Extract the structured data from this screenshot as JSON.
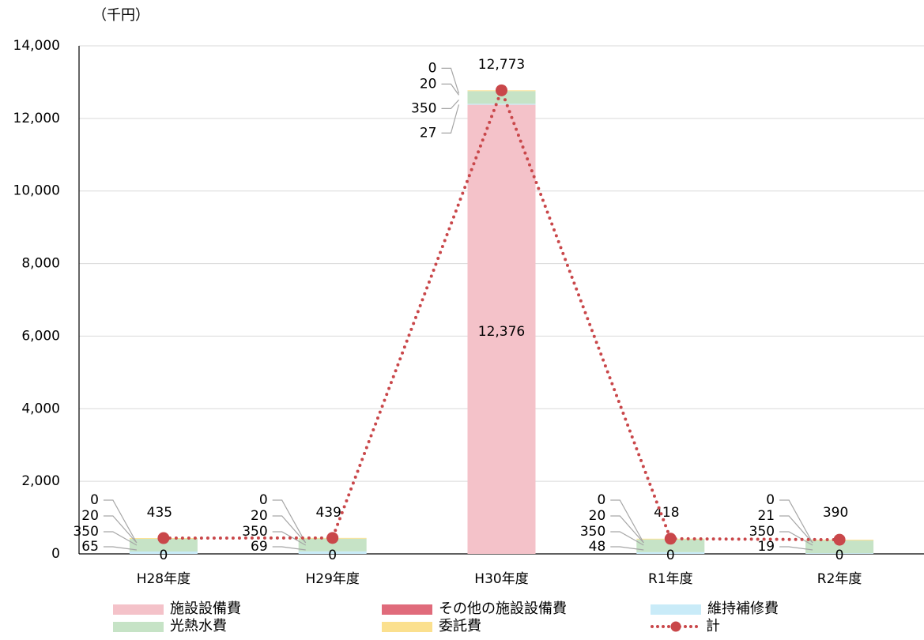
{
  "chart_data": {
    "type": "bar",
    "stacked": true,
    "unit_label": "（千円）",
    "categories": [
      "H28年度",
      "H29年度",
      "H30年度",
      "R1年度",
      "R2年度"
    ],
    "ylim": [
      0,
      14000
    ],
    "yticks": [
      0,
      2000,
      4000,
      6000,
      8000,
      10000,
      12000,
      14000
    ],
    "ytick_labels": [
      "0",
      "2,000",
      "4,000",
      "6,000",
      "8,000",
      "10,000",
      "12,000",
      "14,000"
    ],
    "grid": true,
    "legend_position": "bottom",
    "series": [
      {
        "name": "施設設備費",
        "values": [
          0,
          0,
          12376,
          0,
          0
        ],
        "labels": [
          "0",
          "0",
          "12,376",
          "0",
          "0"
        ],
        "color": "#f4c2c9"
      },
      {
        "name": "その他の施設設備費",
        "values": [
          0,
          0,
          0,
          0,
          0
        ],
        "labels": [
          "",
          "",
          "",
          "",
          ""
        ],
        "color": "#e06b7b"
      },
      {
        "name": "維持補修費",
        "values": [
          65,
          69,
          27,
          48,
          19
        ],
        "labels": [
          "65",
          "69",
          "27",
          "48",
          "19"
        ],
        "color": "#c9ebf8"
      },
      {
        "name": "光熱水費",
        "values": [
          350,
          350,
          350,
          350,
          350
        ],
        "labels": [
          "350",
          "350",
          "350",
          "350",
          "350"
        ],
        "color": "#c6e3c6"
      },
      {
        "name": "委託費",
        "values": [
          20,
          20,
          20,
          20,
          21
        ],
        "labels": [
          "20",
          "20",
          "20",
          "20",
          "21"
        ],
        "color": "#fbe08e"
      },
      {
        "name": "計",
        "type": "line",
        "values": [
          435,
          439,
          12773,
          418,
          390
        ],
        "labels": [
          "435",
          "439",
          "12,773",
          "418",
          "390"
        ],
        "color": "#c9474a"
      }
    ],
    "other_labels": [
      "0",
      "0",
      "0",
      "0",
      "0"
    ]
  }
}
